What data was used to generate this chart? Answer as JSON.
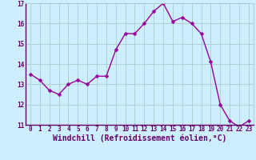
{
  "x": [
    0,
    1,
    2,
    3,
    4,
    5,
    6,
    7,
    8,
    9,
    10,
    11,
    12,
    13,
    14,
    15,
    16,
    17,
    18,
    19,
    20,
    21,
    22,
    23
  ],
  "y": [
    13.5,
    13.2,
    12.7,
    12.5,
    13.0,
    13.2,
    13.0,
    13.4,
    13.4,
    14.7,
    15.5,
    15.5,
    16.0,
    16.6,
    17.0,
    16.1,
    16.3,
    16.0,
    15.5,
    14.1,
    12.0,
    11.2,
    10.9,
    11.2
  ],
  "line_color": "#990099",
  "marker_color": "#990099",
  "bg_color": "#cceeff",
  "grid_color": "#aacccc",
  "axis_color": "#660066",
  "xlabel": "Windchill (Refroidissement éolien,°C)",
  "ylim": [
    11,
    17
  ],
  "xlim": [
    -0.5,
    23.5
  ],
  "yticks": [
    11,
    12,
    13,
    14,
    15,
    16,
    17
  ],
  "xticks": [
    0,
    1,
    2,
    3,
    4,
    5,
    6,
    7,
    8,
    9,
    10,
    11,
    12,
    13,
    14,
    15,
    16,
    17,
    18,
    19,
    20,
    21,
    22,
    23
  ],
  "tick_fontsize": 5.5,
  "label_fontsize": 7.0,
  "line_width": 1.0,
  "marker_size": 2.5
}
